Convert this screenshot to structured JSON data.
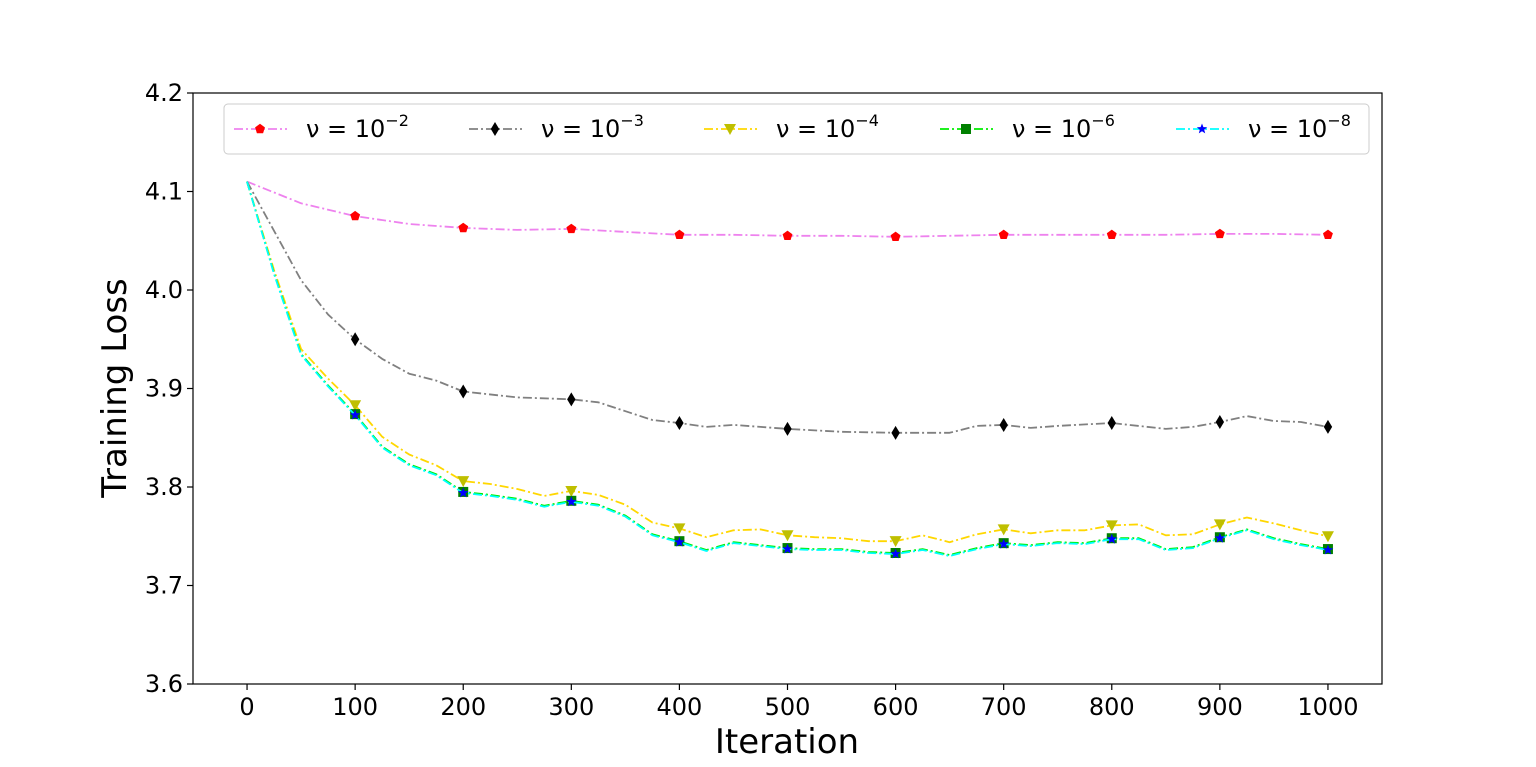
{
  "chart_data": {
    "type": "line",
    "xlabel": "Iteration",
    "ylabel": "Training Loss",
    "xlim": [
      -50,
      1050
    ],
    "ylim": [
      3.6,
      4.2
    ],
    "xticks": [
      0,
      100,
      200,
      300,
      400,
      500,
      600,
      700,
      800,
      900,
      1000
    ],
    "xtick_labels": [
      "0",
      "100",
      "200",
      "300",
      "400",
      "500",
      "600",
      "700",
      "800",
      "900",
      "1000"
    ],
    "yticks": [
      3.6,
      3.7,
      3.8,
      3.9,
      4.0,
      4.1,
      4.2
    ],
    "ytick_labels": [
      "3.6",
      "3.7",
      "3.8",
      "3.9",
      "4.0",
      "4.1",
      "4.2"
    ],
    "grid": false,
    "legend_position": "top",
    "series": [
      {
        "name": "ν = 10⁻²",
        "name_base": "ν = 10",
        "name_exp": "−2",
        "line_color": "#ee82ee",
        "marker_color": "#ff0000",
        "marker": "pentagon",
        "marker_x": [
          100,
          200,
          300,
          400,
          500,
          600,
          700,
          800,
          900,
          1000
        ],
        "x": [
          0,
          50,
          100,
          150,
          200,
          250,
          300,
          350,
          400,
          450,
          500,
          550,
          600,
          650,
          700,
          750,
          800,
          850,
          900,
          950,
          1000
        ],
        "values": [
          4.11,
          4.088,
          4.075,
          4.067,
          4.063,
          4.061,
          4.062,
          4.059,
          4.056,
          4.056,
          4.055,
          4.055,
          4.054,
          4.055,
          4.056,
          4.056,
          4.056,
          4.056,
          4.057,
          4.057,
          4.056
        ]
      },
      {
        "name": "ν = 10⁻³",
        "name_base": "ν = 10",
        "name_exp": "−3",
        "line_color": "#808080",
        "marker_color": "#000000",
        "marker": "thin_diamond",
        "marker_x": [
          100,
          200,
          300,
          400,
          500,
          600,
          700,
          800,
          900,
          1000
        ],
        "x": [
          0,
          25,
          50,
          75,
          100,
          125,
          150,
          175,
          200,
          250,
          300,
          325,
          350,
          375,
          400,
          425,
          450,
          475,
          500,
          550,
          600,
          650,
          675,
          700,
          725,
          750,
          800,
          850,
          875,
          900,
          925,
          950,
          975,
          1000
        ],
        "values": [
          4.11,
          4.06,
          4.01,
          3.975,
          3.95,
          3.93,
          3.915,
          3.908,
          3.897,
          3.891,
          3.889,
          3.886,
          3.877,
          3.868,
          3.865,
          3.861,
          3.863,
          3.861,
          3.859,
          3.856,
          3.855,
          3.855,
          3.862,
          3.863,
          3.86,
          3.862,
          3.865,
          3.859,
          3.861,
          3.866,
          3.872,
          3.867,
          3.866,
          3.861
        ]
      },
      {
        "name": "ν = 10⁻⁴",
        "name_base": "ν = 10",
        "name_exp": "−4",
        "line_color": "#ffd700",
        "marker_color": "#bfbf00",
        "marker": "triangle_down",
        "marker_x": [
          100,
          200,
          300,
          400,
          500,
          600,
          700,
          800,
          900,
          1000
        ],
        "x": [
          0,
          25,
          50,
          75,
          100,
          125,
          150,
          175,
          200,
          225,
          250,
          275,
          300,
          325,
          350,
          375,
          400,
          425,
          450,
          475,
          500,
          525,
          550,
          575,
          600,
          625,
          650,
          675,
          700,
          725,
          750,
          775,
          800,
          825,
          850,
          875,
          900,
          925,
          950,
          975,
          1000
        ],
        "values": [
          4.11,
          4.02,
          3.94,
          3.91,
          3.883,
          3.851,
          3.833,
          3.822,
          3.806,
          3.803,
          3.798,
          3.791,
          3.796,
          3.792,
          3.782,
          3.764,
          3.758,
          3.749,
          3.756,
          3.757,
          3.751,
          3.749,
          3.748,
          3.745,
          3.745,
          3.751,
          3.744,
          3.752,
          3.757,
          3.753,
          3.756,
          3.756,
          3.761,
          3.762,
          3.751,
          3.752,
          3.762,
          3.769,
          3.763,
          3.756,
          3.75
        ]
      },
      {
        "name": "ν = 10⁻⁶",
        "name_base": "ν = 10",
        "name_exp": "−6",
        "line_color": "#00ee00",
        "marker_color": "#008000",
        "marker": "square",
        "marker_x": [
          100,
          200,
          300,
          400,
          500,
          600,
          700,
          800,
          900,
          1000
        ],
        "x": [
          0,
          25,
          50,
          75,
          100,
          125,
          150,
          175,
          200,
          225,
          250,
          275,
          300,
          325,
          350,
          375,
          400,
          425,
          450,
          475,
          500,
          525,
          550,
          575,
          600,
          625,
          650,
          675,
          700,
          725,
          750,
          775,
          800,
          825,
          850,
          875,
          900,
          925,
          950,
          975,
          1000
        ],
        "values": [
          4.11,
          4.017,
          3.935,
          3.903,
          3.874,
          3.841,
          3.823,
          3.813,
          3.795,
          3.792,
          3.788,
          3.781,
          3.786,
          3.782,
          3.771,
          3.752,
          3.745,
          3.736,
          3.744,
          3.741,
          3.738,
          3.737,
          3.737,
          3.734,
          3.733,
          3.737,
          3.731,
          3.738,
          3.743,
          3.741,
          3.744,
          3.743,
          3.748,
          3.748,
          3.737,
          3.739,
          3.749,
          3.757,
          3.748,
          3.742,
          3.737
        ]
      },
      {
        "name": "ν = 10⁻⁸",
        "name_base": "ν = 10",
        "name_exp": "−8",
        "line_color": "#00ffff",
        "marker_color": "#0000ff",
        "marker": "star",
        "marker_x": [
          100,
          200,
          300,
          400,
          500,
          600,
          700,
          800,
          900,
          1000
        ],
        "x": [
          0,
          25,
          50,
          75,
          100,
          125,
          150,
          175,
          200,
          225,
          250,
          275,
          300,
          325,
          350,
          375,
          400,
          425,
          450,
          475,
          500,
          525,
          550,
          575,
          600,
          625,
          650,
          675,
          700,
          725,
          750,
          775,
          800,
          825,
          850,
          875,
          900,
          925,
          950,
          975,
          1000
        ],
        "values": [
          4.11,
          4.016,
          3.934,
          3.902,
          3.873,
          3.84,
          3.822,
          3.812,
          3.794,
          3.791,
          3.787,
          3.78,
          3.785,
          3.781,
          3.77,
          3.751,
          3.744,
          3.735,
          3.743,
          3.74,
          3.737,
          3.736,
          3.736,
          3.733,
          3.732,
          3.736,
          3.73,
          3.737,
          3.742,
          3.74,
          3.743,
          3.742,
          3.747,
          3.747,
          3.736,
          3.738,
          3.748,
          3.756,
          3.747,
          3.741,
          3.736
        ]
      }
    ]
  }
}
